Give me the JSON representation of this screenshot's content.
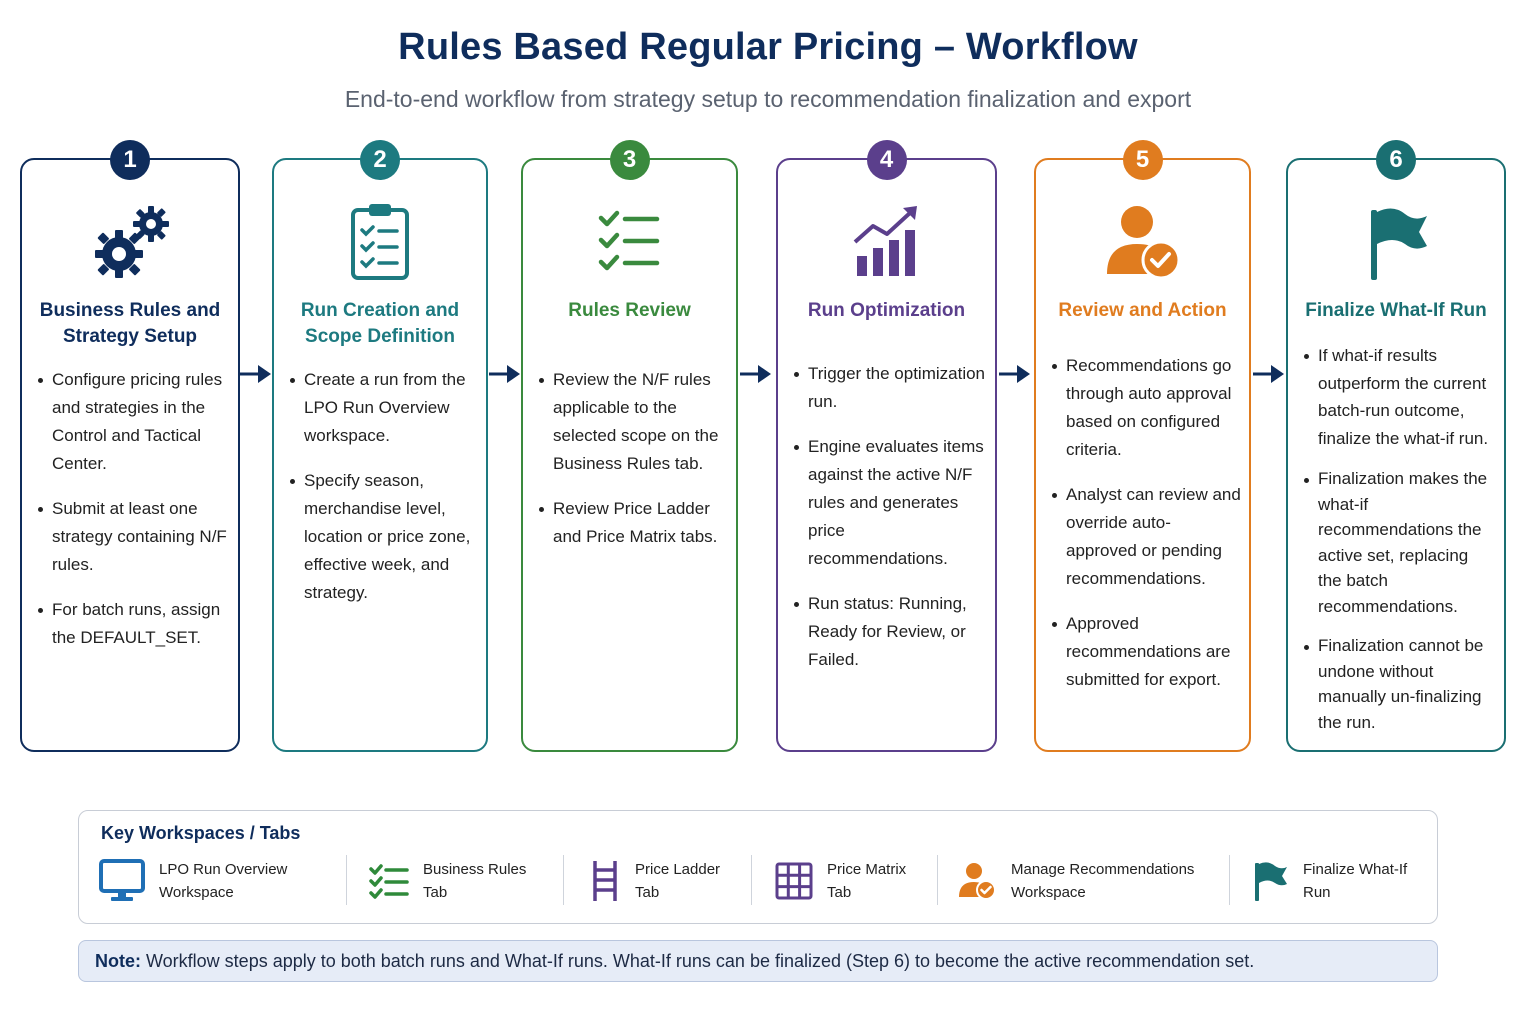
{
  "header": {
    "title": "Rules Based Regular Pricing – Workflow",
    "subtitle": "End-to-end workflow from strategy setup to recommendation finalization and export"
  },
  "steps": [
    {
      "number": "1",
      "color": "#0f2d5c",
      "icon": "gears-icon",
      "title_lines": [
        "Business Rules and",
        "Strategy Setup"
      ],
      "bullets": [
        "Configure pricing rules and strategies in the Control and Tactical Center.",
        "Submit at least one strategy containing N/F rules.",
        "For batch runs, assign the DEFAULT_SET."
      ]
    },
    {
      "number": "2",
      "color": "#1d7a80",
      "icon": "clipboard-checklist-icon",
      "title_lines": [
        "Run Creation and",
        "Scope Definition"
      ],
      "bullets": [
        "Create a run from the LPO Run Overview workspace.",
        "Specify season, merchandise level, location or price zone, effective week, and strategy."
      ]
    },
    {
      "number": "3",
      "color": "#3a8a3e",
      "icon": "checklist-icon",
      "title_lines": [
        "Rules Review"
      ],
      "bullets": [
        "Review the N/F rules applicable to the selected scope on the Business Rules tab.",
        "Review Price Ladder and Price Matrix tabs."
      ]
    },
    {
      "number": "4",
      "color": "#5b3f8c",
      "icon": "bar-chart-trend-icon",
      "title_lines": [
        "Run Optimization"
      ],
      "bullets": [
        "Trigger the optimization run.",
        "Engine evaluates items against the active N/F rules and generates price recommendations.",
        "Run status: Running, Ready for Review, or Failed."
      ]
    },
    {
      "number": "5",
      "color": "#e07c1f",
      "icon": "user-approve-icon",
      "title_lines": [
        "Review and Action"
      ],
      "bullets": [
        "Recommendations go through auto approval based on configured criteria.",
        "Analyst can review and override auto-approved or pending recommendations.",
        "Approved recommendations are submitted for export."
      ]
    },
    {
      "number": "6",
      "color": "#1a6f72",
      "icon": "flag-icon",
      "title_lines": [
        "Finalize What-If Run"
      ],
      "bullets": [
        "If what-if results outperform the current batch-run outcome, finalize the what-if run.",
        "Finalization makes the what-if recommendations the active set, replacing the batch recommendations.",
        "Finalization cannot be undone without manually un-finalizing the run."
      ]
    }
  ],
  "workspaces": {
    "title": "Key Workspaces / Tabs",
    "items": [
      {
        "icon": "monitor-icon",
        "lines": [
          "LPO Run Overview",
          "Workspace"
        ]
      },
      {
        "icon": "checklist-icon",
        "lines": [
          "Business Rules",
          "Tab"
        ]
      },
      {
        "icon": "ladder-icon",
        "lines": [
          "Price Ladder",
          "Tab"
        ]
      },
      {
        "icon": "grid-icon",
        "lines": [
          "Price Matrix",
          "Tab"
        ]
      },
      {
        "icon": "user-approve-icon",
        "lines": [
          "Manage Recommendations",
          "Workspace"
        ]
      },
      {
        "icon": "flag-icon",
        "lines": [
          "Finalize What-If",
          "Run"
        ]
      }
    ]
  },
  "note": {
    "label": "Note:",
    "text": " Workflow steps apply to both batch runs and What-If runs. What-If runs can be finalized (Step 6) to become the active recommendation set."
  }
}
